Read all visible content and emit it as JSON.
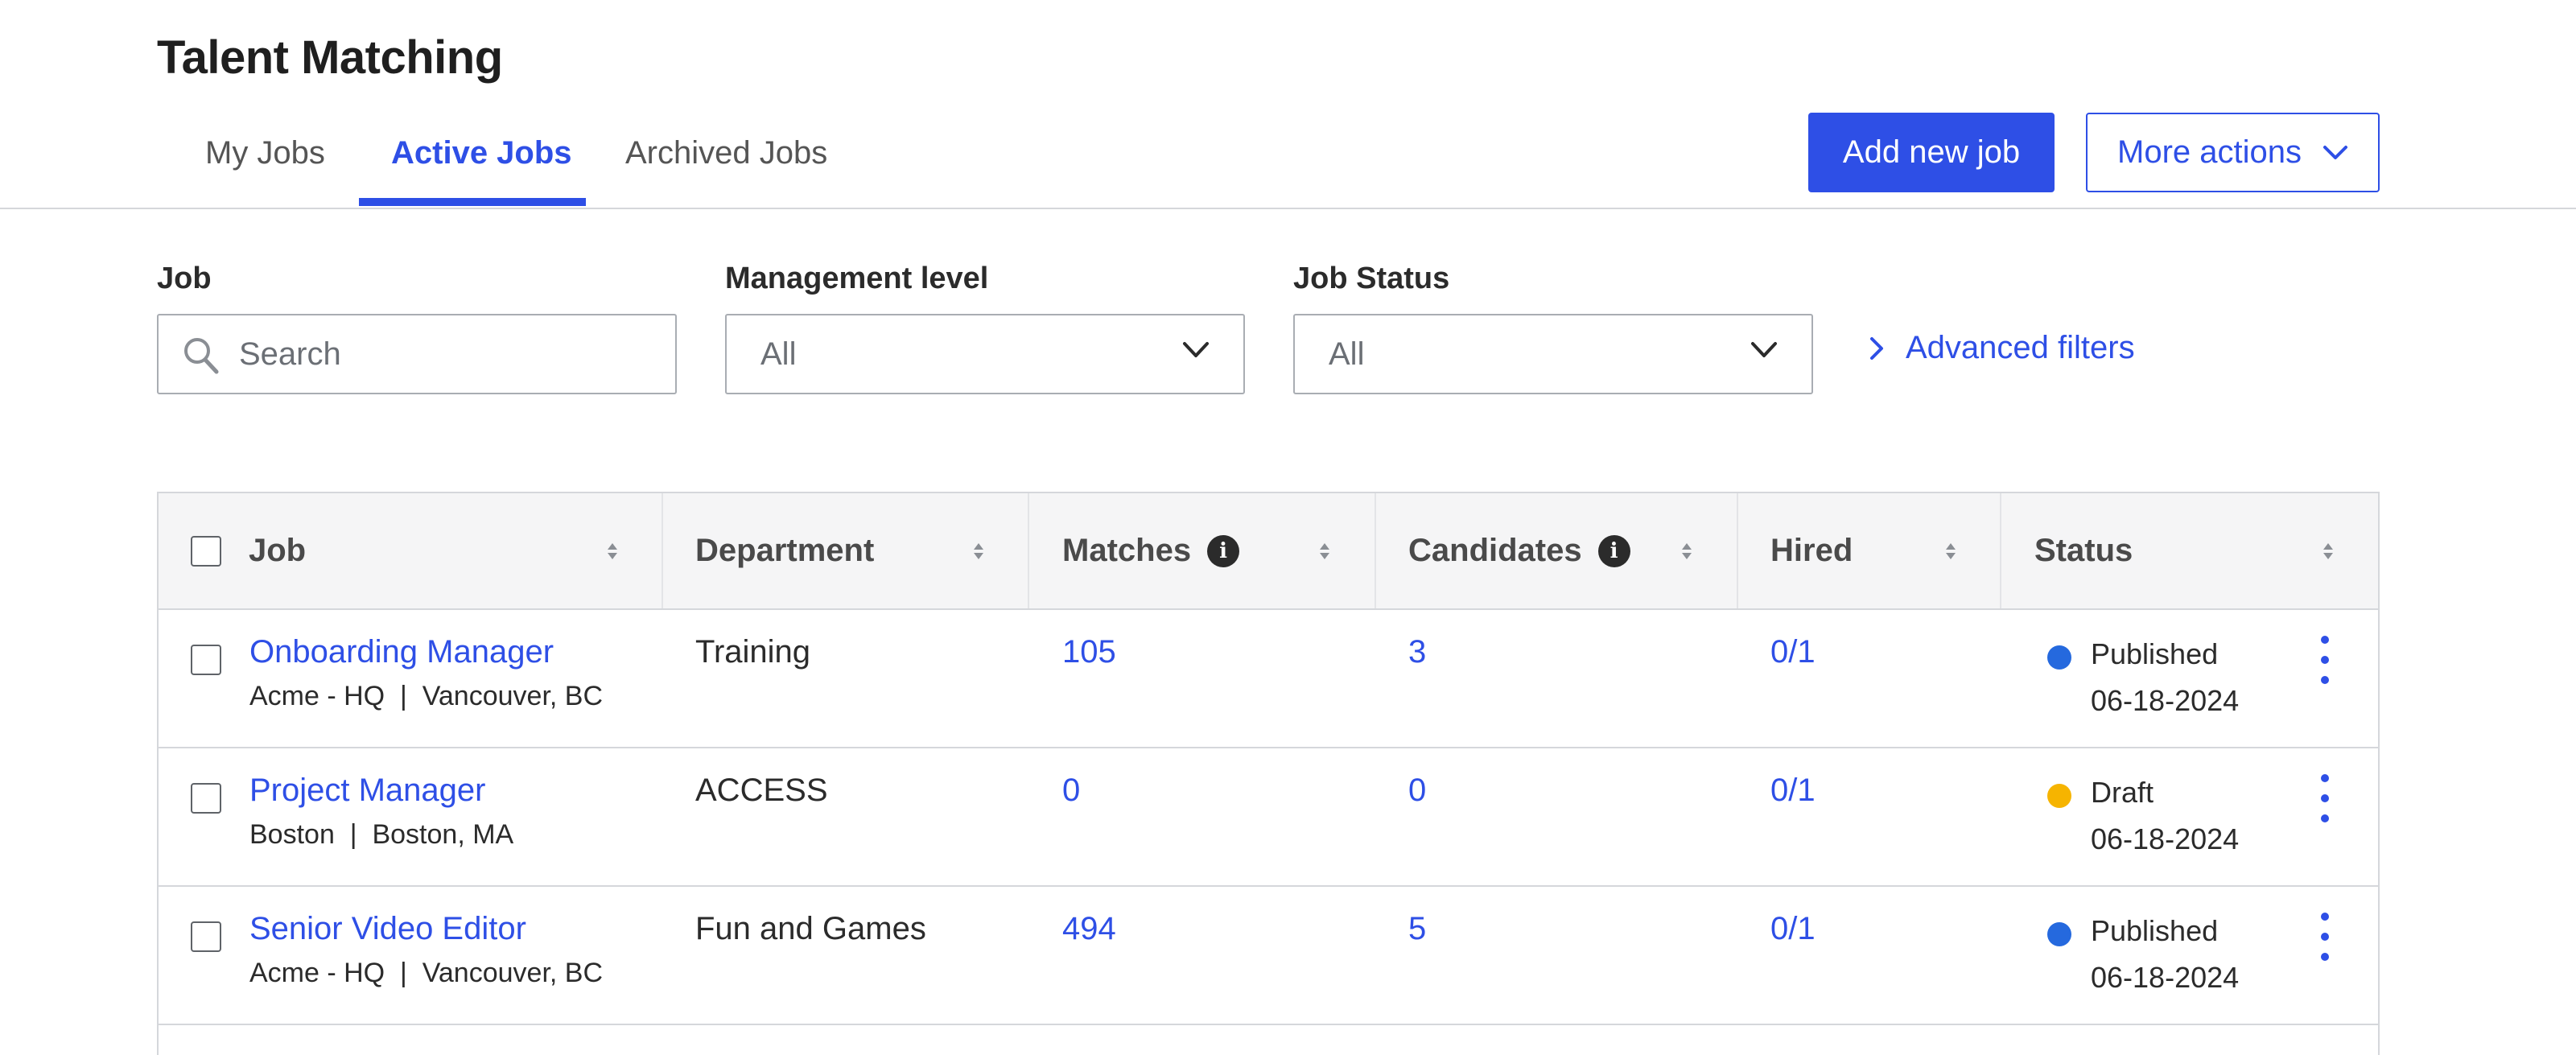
{
  "page": {
    "title": "Talent Matching"
  },
  "tabs": [
    {
      "label": "My Jobs"
    },
    {
      "label": "Active Jobs"
    },
    {
      "label": "Archived Jobs"
    }
  ],
  "actions": {
    "add_job": "Add new job",
    "more_actions": "More actions"
  },
  "filters": {
    "job": {
      "label": "Job",
      "placeholder": "Search"
    },
    "management_level": {
      "label": "Management level",
      "value": "All"
    },
    "job_status": {
      "label": "Job Status",
      "value": "All"
    },
    "advanced": "Advanced filters"
  },
  "table": {
    "columns": [
      "Job",
      "Department",
      "Matches",
      "Candidates",
      "Hired",
      "Status"
    ],
    "rows": [
      {
        "job": "Onboarding Manager",
        "location": "Acme - HQ  |  Vancouver, BC",
        "department": "Training",
        "matches": "105",
        "candidates": "3",
        "hired": "0/1",
        "status": "Published",
        "date": "06-18-2024",
        "status_color": "#2569de"
      },
      {
        "job": "Project Manager",
        "location": "Boston  |  Boston, MA",
        "department": "ACCESS",
        "matches": "0",
        "candidates": "0",
        "hired": "0/1",
        "status": "Draft",
        "date": "06-18-2024",
        "status_color": "#f6b400"
      },
      {
        "job": "Senior Video Editor",
        "location": "Acme - HQ  |  Vancouver, BC",
        "department": "Fun and Games",
        "matches": "494",
        "candidates": "5",
        "hired": "0/1",
        "status": "Published",
        "date": "06-18-2024",
        "status_color": "#2569de"
      }
    ]
  },
  "colors": {
    "accent": "#2e4fe6",
    "border": "#d5d7db",
    "header_bg": "#f5f5f6"
  }
}
